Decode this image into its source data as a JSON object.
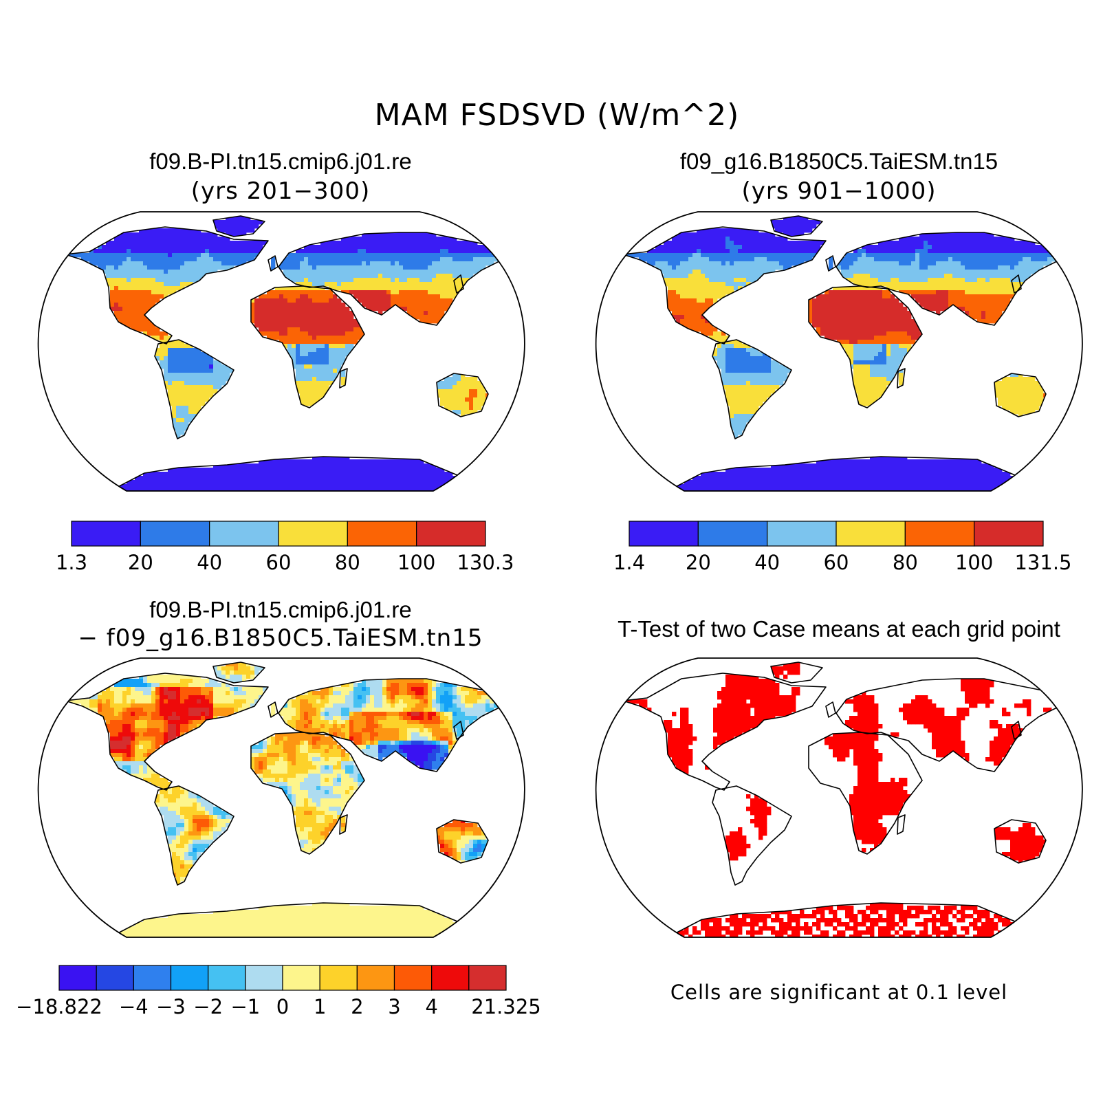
{
  "title": "MAM FSDSVD (W/m^2)",
  "panels": [
    {
      "id": "case1",
      "title": "f09.B-PI.tn15.cmip6.j01.re",
      "subtitle": "(yrs 201−300)",
      "colorbar": {
        "labels": [
          "1.3",
          "20",
          "40",
          "60",
          "80",
          "100",
          "130.3"
        ],
        "colors": [
          "#3a1cf5",
          "#2e7be8",
          "#7cc4ee",
          "#f9df3a",
          "#fb6405",
          "#d62c2a"
        ]
      }
    },
    {
      "id": "case2",
      "title": "f09_g16.B1850C5.TaiESM.tn15",
      "subtitle": "(yrs 901−1000)",
      "colorbar": {
        "labels": [
          "1.4",
          "20",
          "40",
          "60",
          "80",
          "100",
          "131.5"
        ],
        "colors": [
          "#3a1cf5",
          "#2e7be8",
          "#7cc4ee",
          "#f9df3a",
          "#fb6405",
          "#d62c2a"
        ]
      }
    },
    {
      "id": "diff",
      "title": "f09.B-PI.tn15.cmip6.j01.re",
      "subtitle": "− f09_g16.B1850C5.TaiESM.tn15",
      "colorbar": {
        "labels": [
          "−18.822",
          "−4",
          "−3",
          "−2",
          "−1",
          "0",
          "1",
          "2",
          "3",
          "4",
          "21.325"
        ],
        "label_slots": [
          0,
          2,
          3,
          4,
          5,
          6,
          7,
          8,
          9,
          10,
          12
        ],
        "colors": [
          "#3a12f2",
          "#2547e3",
          "#2f80ee",
          "#12a1f7",
          "#45c1f2",
          "#aedcf0",
          "#fdf58c",
          "#fdd22a",
          "#fd9612",
          "#fd5a06",
          "#ee0a0a",
          "#d52e2e"
        ]
      }
    },
    {
      "id": "ttest",
      "title": "T-Test of two Case means at each grid point",
      "note": "Cells are significant at 0.1 level"
    }
  ],
  "colors": {
    "significant": "#ff0000",
    "coast": "#000000"
  }
}
